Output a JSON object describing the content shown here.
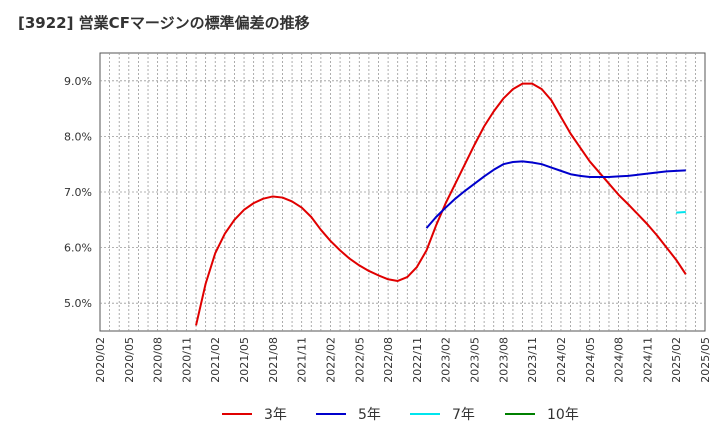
{
  "chart_data": {
    "type": "line",
    "title": "[3922]  営業CFマージンの標準偏差の推移",
    "ylim": [
      4.5,
      9.5
    ],
    "y_ticks": [
      5.0,
      6.0,
      7.0,
      8.0,
      9.0
    ],
    "y_tick_labels": [
      "5.0%",
      "6.0%",
      "7.0%",
      "8.0%",
      "9.0%"
    ],
    "x_tick_labels": [
      "2020/02",
      "2020/05",
      "2020/08",
      "2020/11",
      "2021/02",
      "2021/05",
      "2021/08",
      "2021/11",
      "2022/02",
      "2022/05",
      "2022/08",
      "2022/11",
      "2023/02",
      "2023/05",
      "2023/08",
      "2023/11",
      "2024/02",
      "2024/05",
      "2024/08",
      "2024/11",
      "2025/02",
      "2025/05"
    ],
    "grid": true,
    "legend_position": "bottom",
    "series": [
      {
        "name": "3年",
        "color": "#e00000",
        "points": [
          [
            "2020/12",
            4.6
          ],
          [
            "2021/01",
            5.35
          ],
          [
            "2021/02",
            5.9
          ],
          [
            "2021/03",
            6.25
          ],
          [
            "2021/04",
            6.5
          ],
          [
            "2021/05",
            6.68
          ],
          [
            "2021/06",
            6.8
          ],
          [
            "2021/07",
            6.88
          ],
          [
            "2021/08",
            6.92
          ],
          [
            "2021/09",
            6.9
          ],
          [
            "2021/10",
            6.83
          ],
          [
            "2021/11",
            6.72
          ],
          [
            "2021/12",
            6.55
          ],
          [
            "2022/01",
            6.32
          ],
          [
            "2022/02",
            6.12
          ],
          [
            "2022/03",
            5.95
          ],
          [
            "2022/04",
            5.8
          ],
          [
            "2022/05",
            5.68
          ],
          [
            "2022/06",
            5.58
          ],
          [
            "2022/07",
            5.5
          ],
          [
            "2022/08",
            5.43
          ],
          [
            "2022/09",
            5.4
          ],
          [
            "2022/10",
            5.47
          ],
          [
            "2022/11",
            5.65
          ],
          [
            "2022/12",
            5.95
          ],
          [
            "2023/01",
            6.4
          ],
          [
            "2023/02",
            6.8
          ],
          [
            "2023/03",
            7.15
          ],
          [
            "2023/04",
            7.5
          ],
          [
            "2023/05",
            7.85
          ],
          [
            "2023/06",
            8.18
          ],
          [
            "2023/07",
            8.45
          ],
          [
            "2023/08",
            8.68
          ],
          [
            "2023/09",
            8.85
          ],
          [
            "2023/10",
            8.95
          ],
          [
            "2023/11",
            8.95
          ],
          [
            "2023/12",
            8.85
          ],
          [
            "2024/01",
            8.65
          ],
          [
            "2024/02",
            8.35
          ],
          [
            "2024/03",
            8.05
          ],
          [
            "2024/04",
            7.8
          ],
          [
            "2024/05",
            7.55
          ],
          [
            "2024/06",
            7.35
          ],
          [
            "2024/07",
            7.15
          ],
          [
            "2024/08",
            6.95
          ],
          [
            "2024/09",
            6.78
          ],
          [
            "2024/10",
            6.6
          ],
          [
            "2024/11",
            6.42
          ],
          [
            "2024/12",
            6.22
          ],
          [
            "2025/01",
            6.0
          ],
          [
            "2025/02",
            5.78
          ],
          [
            "2025/03",
            5.52
          ]
        ]
      },
      {
        "name": "5年",
        "color": "#0000cc",
        "points": [
          [
            "2022/12",
            6.35
          ],
          [
            "2023/01",
            6.55
          ],
          [
            "2023/02",
            6.72
          ],
          [
            "2023/03",
            6.88
          ],
          [
            "2023/04",
            7.02
          ],
          [
            "2023/05",
            7.15
          ],
          [
            "2023/06",
            7.28
          ],
          [
            "2023/07",
            7.4
          ],
          [
            "2023/08",
            7.5
          ],
          [
            "2023/09",
            7.54
          ],
          [
            "2023/10",
            7.55
          ],
          [
            "2023/11",
            7.53
          ],
          [
            "2023/12",
            7.5
          ],
          [
            "2024/01",
            7.44
          ],
          [
            "2024/02",
            7.38
          ],
          [
            "2024/03",
            7.32
          ],
          [
            "2024/04",
            7.29
          ],
          [
            "2024/05",
            7.27
          ],
          [
            "2024/06",
            7.27
          ],
          [
            "2024/07",
            7.27
          ],
          [
            "2024/08",
            7.28
          ],
          [
            "2024/09",
            7.29
          ],
          [
            "2024/10",
            7.31
          ],
          [
            "2024/11",
            7.33
          ],
          [
            "2024/12",
            7.35
          ],
          [
            "2025/01",
            7.37
          ],
          [
            "2025/02",
            7.38
          ],
          [
            "2025/03",
            7.39
          ]
        ]
      },
      {
        "name": "7年",
        "color": "#00e5ee",
        "points": [
          [
            "2025/02",
            6.63
          ],
          [
            "2025/03",
            6.64
          ]
        ]
      },
      {
        "name": "10年",
        "color": "#008000",
        "points": []
      }
    ]
  }
}
